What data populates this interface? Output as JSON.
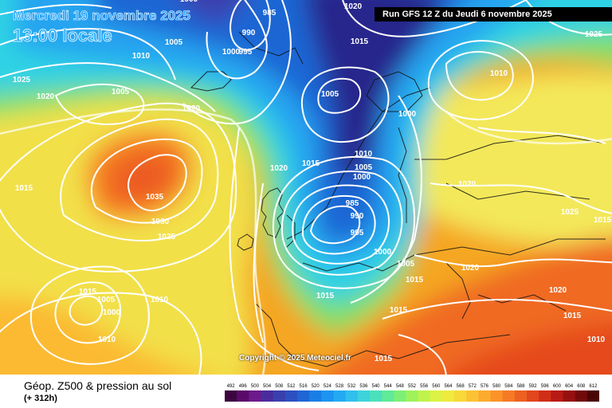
{
  "header": {
    "date": "Mercredi 19 novembre 2025",
    "time": "13:00 locale",
    "run": "Run GFS 12 Z du Jeudi 6 novembre 2025"
  },
  "copyright": "Copyright © 2025 Meteociel.fr",
  "footer": {
    "product": "Géop. Z500 & pression au sol",
    "lead": "(+ 312h)"
  },
  "scale": {
    "ticks": [
      "492",
      "496",
      "500",
      "504",
      "508",
      "512",
      "516",
      "520",
      "524",
      "528",
      "532",
      "536",
      "540",
      "544",
      "548",
      "552",
      "556",
      "560",
      "564",
      "568",
      "572",
      "576",
      "580",
      "584",
      "588",
      "592",
      "596",
      "600",
      "604",
      "608",
      "612"
    ],
    "colors": [
      "#3d0540",
      "#5a0b6a",
      "#6d1a8c",
      "#4a2c9c",
      "#3a3fae",
      "#2c50c0",
      "#1f66d4",
      "#1a7ee8",
      "#1d94f0",
      "#23aaf2",
      "#2fc0ee",
      "#3cd3da",
      "#4ae0bc",
      "#5eea98",
      "#7cf076",
      "#9ef25a",
      "#bff34c",
      "#dcf244",
      "#eeea3e",
      "#f8d838",
      "#fbc233",
      "#fcab2e",
      "#fb9329",
      "#f57a24",
      "#ec6020",
      "#e1461c",
      "#d12e18",
      "#b81a14",
      "#971010",
      "#720a0a",
      "#4a0505"
    ]
  },
  "pressure_labels": [
    {
      "id": "p01",
      "text": "1000"
    },
    {
      "id": "p02",
      "text": "985"
    },
    {
      "id": "p03",
      "text": "1020"
    },
    {
      "id": "p04",
      "text": "990"
    },
    {
      "id": "p05",
      "text": "1015"
    },
    {
      "id": "p06",
      "text": "1025"
    },
    {
      "id": "p07",
      "text": "1005"
    },
    {
      "id": "p08",
      "text": "1000"
    },
    {
      "id": "p09",
      "text": "995"
    },
    {
      "id": "p10",
      "text": "1010"
    },
    {
      "id": "p11",
      "text": "1010"
    },
    {
      "id": "p12",
      "text": "1025"
    },
    {
      "id": "p13",
      "text": "1020"
    },
    {
      "id": "p14",
      "text": "1005"
    },
    {
      "id": "p15",
      "text": "1005"
    },
    {
      "id": "p16",
      "text": "1020"
    },
    {
      "id": "p17",
      "text": "1000"
    },
    {
      "id": "p18",
      "text": "1015"
    },
    {
      "id": "p19",
      "text": "1035"
    },
    {
      "id": "p20",
      "text": "1030"
    },
    {
      "id": "p21",
      "text": "1025"
    },
    {
      "id": "p22",
      "text": "1020"
    },
    {
      "id": "p23",
      "text": "1015"
    },
    {
      "id": "p24",
      "text": "1010"
    },
    {
      "id": "p25",
      "text": "1005"
    },
    {
      "id": "p26",
      "text": "1000"
    },
    {
      "id": "p27",
      "text": "985"
    },
    {
      "id": "p28",
      "text": "990"
    },
    {
      "id": "p29",
      "text": "995"
    },
    {
      "id": "p30",
      "text": "1000"
    },
    {
      "id": "p31",
      "text": "1005"
    },
    {
      "id": "p32",
      "text": "1015"
    },
    {
      "id": "p33",
      "text": "1020"
    },
    {
      "id": "p34",
      "text": "1025"
    },
    {
      "id": "p35",
      "text": "1015"
    },
    {
      "id": "p36",
      "text": "1020"
    },
    {
      "id": "p37",
      "text": "1015"
    },
    {
      "id": "p38",
      "text": "1010"
    },
    {
      "id": "p39",
      "text": "1015"
    },
    {
      "id": "p40",
      "text": "1005"
    },
    {
      "id": "p41",
      "text": "1000"
    },
    {
      "id": "p42",
      "text": "1020"
    },
    {
      "id": "p43",
      "text": "1010"
    },
    {
      "id": "p44",
      "text": "1015"
    },
    {
      "id": "p45",
      "text": "1010"
    },
    {
      "id": "p46",
      "text": "1015"
    },
    {
      "id": "p47",
      "text": "1015"
    }
  ]
}
